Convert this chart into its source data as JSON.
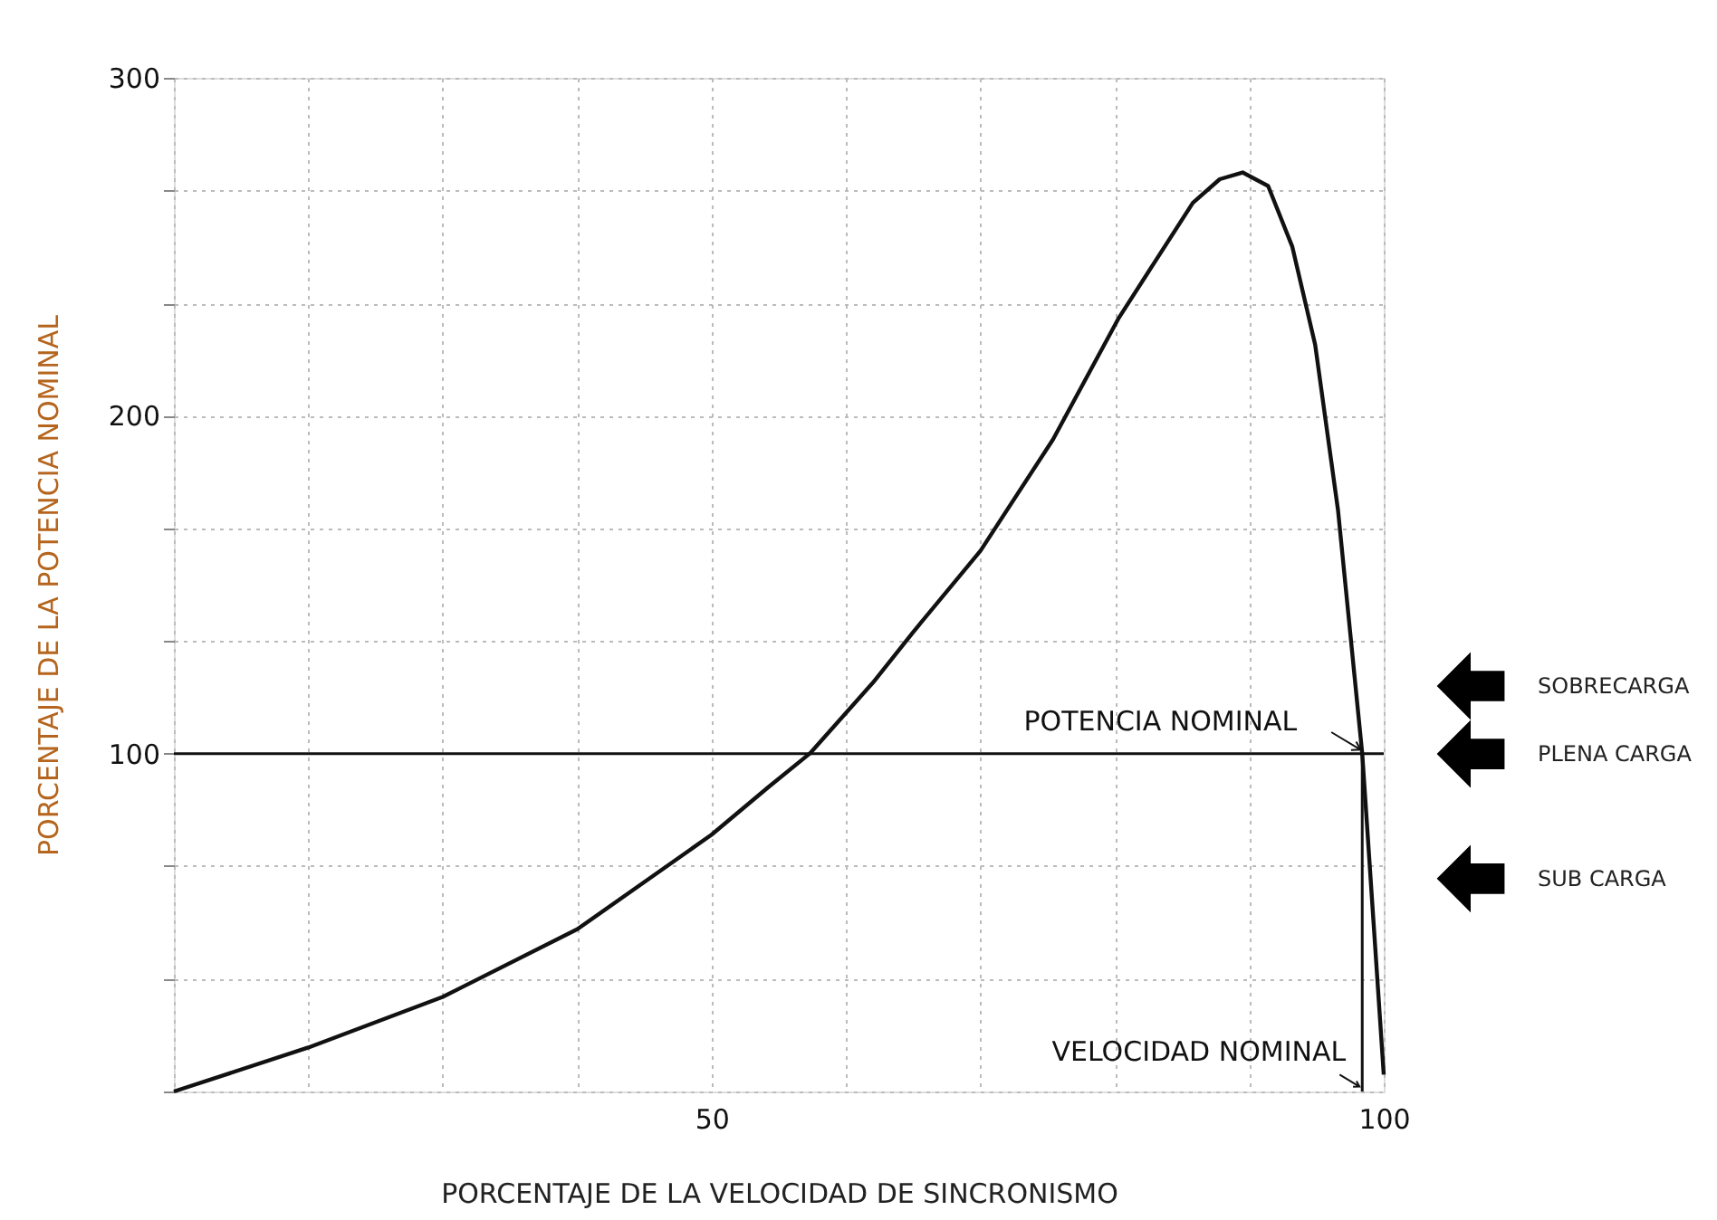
{
  "chart_data": {
    "type": "line",
    "xlabel": "PORCENTAJE DE LA VELOCIDAD DE SINCRONISMO",
    "ylabel": "PORCENTAJE DE LA POTENCIA NOMINAL",
    "x": [
      10,
      20,
      30,
      40,
      50,
      54.2,
      57.3,
      62,
      65,
      70,
      75.4,
      80.3,
      85.8,
      87.8,
      89.5,
      91.4,
      93.2,
      94.9,
      96.6,
      98.4,
      100
    ],
    "series": [
      {
        "color": "#111111",
        "values": [
          0,
          13,
          28,
          48,
          76,
          90,
          100,
          121,
          136,
          160,
          193,
          229,
          263,
          270,
          272,
          268,
          250,
          221,
          172,
          100,
          5
        ]
      }
    ],
    "xlim": [
      10,
      100
    ],
    "xticks": [
      {
        "value": 10,
        "label": null
      },
      {
        "value": 20,
        "label": null
      },
      {
        "value": 30,
        "label": null
      },
      {
        "value": 40,
        "label": null
      },
      50,
      {
        "value": 60,
        "label": null
      },
      {
        "value": 70,
        "label": null
      },
      {
        "value": 80,
        "label": null
      },
      {
        "value": 90,
        "label": null
      },
      100
    ],
    "ylim": [
      0,
      300
    ],
    "yticks": [
      {
        "value": 0,
        "label": null
      },
      {
        "value": 33.3,
        "label": null
      },
      {
        "value": 66.7,
        "label": null
      },
      100,
      {
        "value": 133.3,
        "label": null
      },
      {
        "value": 166.7,
        "label": null
      },
      200,
      {
        "value": 233.3,
        "label": null
      },
      {
        "value": 266.7,
        "label": null
      },
      300
    ],
    "grid": true,
    "ref_lines": [
      {
        "axis": "y",
        "value": 100,
        "color": "#111111"
      },
      {
        "axis": "x",
        "value": 98.4,
        "color": "#111111"
      }
    ],
    "annotations": [
      {
        "text": "POTENCIA NOMINAL",
        "x": 98.4,
        "y": 100
      },
      "VELOCIDAD NOMINAL",
      "SOBRECARGA",
      "PLENA CARGA",
      "SUB CARGA"
    ]
  }
}
